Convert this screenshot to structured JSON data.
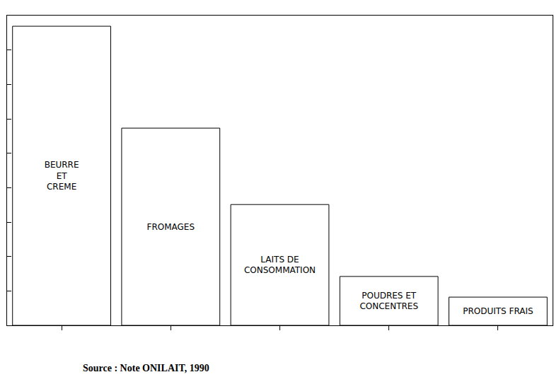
{
  "chart_data": {
    "type": "bar",
    "categories": [
      "BEURRE\nET\nCREME",
      "FROMAGES",
      "LAITS DE\nCONSOMMATION",
      "POUDRES ET\nCONCENTRES",
      "PRODUITS FRAIS"
    ],
    "values": [
      8.69,
      5.73,
      3.51,
      1.42,
      0.82
    ],
    "color": "#ffffff",
    "ylim": [
      0,
      9
    ],
    "yticks": [
      0,
      1,
      2,
      3,
      4,
      5,
      6,
      7,
      8,
      9
    ],
    "grid": false,
    "tick_labels": false,
    "annotations": [
      "Source : Note ONILAIT, 1990"
    ]
  }
}
